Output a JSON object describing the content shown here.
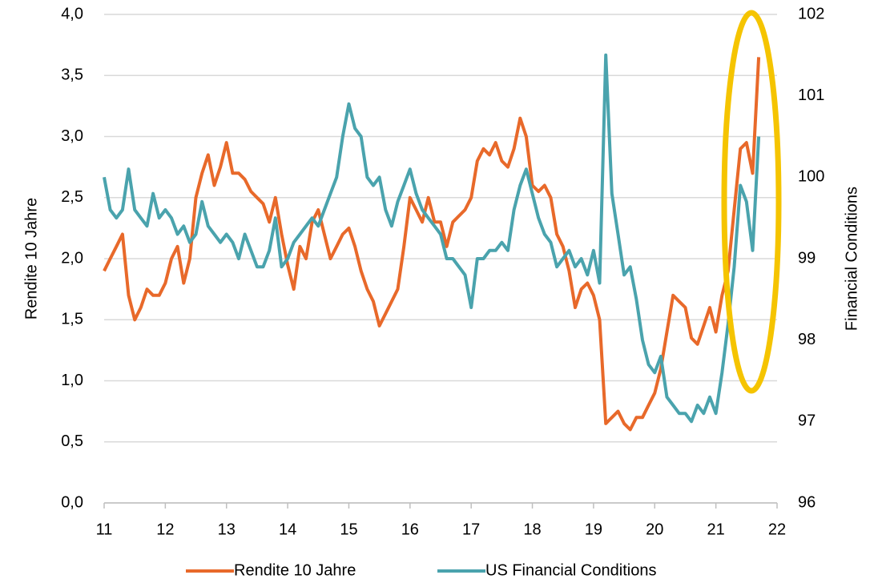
{
  "chart_data": {
    "type": "line",
    "y_label": "Rendite 10 Jahre",
    "y2_label": "Financial Conditions",
    "x": [
      11.0,
      11.1,
      11.2,
      11.3,
      11.4,
      11.5,
      11.6,
      11.7,
      11.8,
      11.9,
      12.0,
      12.1,
      12.2,
      12.3,
      12.4,
      12.5,
      12.6,
      12.7,
      12.8,
      12.9,
      13.0,
      13.1,
      13.2,
      13.3,
      13.4,
      13.5,
      13.6,
      13.7,
      13.8,
      13.9,
      14.0,
      14.1,
      14.2,
      14.3,
      14.4,
      14.5,
      14.6,
      14.7,
      14.8,
      14.9,
      15.0,
      15.1,
      15.2,
      15.3,
      15.4,
      15.5,
      15.6,
      15.7,
      15.8,
      15.9,
      16.0,
      16.1,
      16.2,
      16.3,
      16.4,
      16.5,
      16.6,
      16.7,
      16.8,
      16.9,
      17.0,
      17.1,
      17.2,
      17.3,
      17.4,
      17.5,
      17.6,
      17.7,
      17.8,
      17.9,
      18.0,
      18.1,
      18.2,
      18.3,
      18.4,
      18.5,
      18.6,
      18.7,
      18.8,
      18.9,
      19.0,
      19.1,
      19.2,
      19.3,
      19.4,
      19.5,
      19.6,
      19.7,
      19.8,
      19.9,
      20.0,
      20.1,
      20.2,
      20.3,
      20.4,
      20.5,
      20.6,
      20.7,
      20.8,
      20.9,
      21.0,
      21.1,
      21.2,
      21.3,
      21.4,
      21.5,
      21.6,
      21.7
    ],
    "xlim": [
      11,
      22
    ],
    "xticks": [
      11,
      12,
      13,
      14,
      15,
      16,
      17,
      18,
      19,
      20,
      21,
      22
    ],
    "ylim": [
      0,
      4
    ],
    "yticks": [
      {
        "value": 0,
        "label": "0,0"
      },
      {
        "value": 0.5,
        "label": "0,5"
      },
      {
        "value": 1,
        "label": "1,0"
      },
      {
        "value": 1.5,
        "label": "1,5"
      },
      {
        "value": 2,
        "label": "2,0"
      },
      {
        "value": 2.5,
        "label": "2,5"
      },
      {
        "value": 3,
        "label": "3,0"
      },
      {
        "value": 3.5,
        "label": "3,5"
      },
      {
        "value": 4,
        "label": "4,0"
      }
    ],
    "y2lim": [
      96,
      102
    ],
    "y2ticks": [
      96,
      97,
      98,
      99,
      100,
      101,
      102
    ],
    "grid": true,
    "legend": "bottom",
    "series": [
      {
        "name": "Rendite 10 Jahre",
        "color": "#e8692a",
        "axis": "y",
        "values": [
          1.9,
          2.0,
          2.1,
          2.2,
          1.7,
          1.5,
          1.6,
          1.75,
          1.7,
          1.7,
          1.8,
          2.0,
          2.1,
          1.8,
          2.0,
          2.5,
          2.7,
          2.85,
          2.6,
          2.75,
          2.95,
          2.7,
          2.7,
          2.65,
          2.55,
          2.5,
          2.45,
          2.3,
          2.5,
          2.2,
          1.95,
          1.75,
          2.1,
          2.0,
          2.3,
          2.4,
          2.2,
          2.0,
          2.1,
          2.2,
          2.25,
          2.1,
          1.9,
          1.75,
          1.65,
          1.45,
          1.55,
          1.65,
          1.75,
          2.1,
          2.5,
          2.4,
          2.3,
          2.5,
          2.3,
          2.3,
          2.1,
          2.3,
          2.35,
          2.4,
          2.5,
          2.8,
          2.9,
          2.85,
          2.95,
          2.8,
          2.75,
          2.9,
          3.15,
          3.0,
          2.6,
          2.55,
          2.6,
          2.5,
          2.2,
          2.1,
          1.9,
          1.6,
          1.75,
          1.8,
          1.7,
          1.5,
          0.65,
          0.7,
          0.75,
          0.65,
          0.6,
          0.7,
          0.7,
          0.8,
          0.9,
          1.1,
          1.4,
          1.7,
          1.65,
          1.6,
          1.35,
          1.3,
          1.45,
          1.6,
          1.4,
          1.7,
          1.9,
          2.4,
          2.9,
          2.95,
          2.7,
          3.65
        ]
      },
      {
        "name": "US Financial Conditions",
        "color": "#4aa3ad",
        "axis": "y2",
        "values": [
          100.0,
          99.6,
          99.5,
          99.6,
          100.1,
          99.6,
          99.5,
          99.4,
          99.8,
          99.5,
          99.6,
          99.5,
          99.3,
          99.4,
          99.2,
          99.3,
          99.7,
          99.4,
          99.3,
          99.2,
          99.3,
          99.2,
          99.0,
          99.3,
          99.1,
          98.9,
          98.9,
          99.1,
          99.5,
          98.9,
          99.0,
          99.2,
          99.3,
          99.4,
          99.5,
          99.4,
          99.6,
          99.8,
          100.0,
          100.5,
          100.9,
          100.6,
          100.5,
          100.0,
          99.9,
          100.0,
          99.6,
          99.4,
          99.7,
          99.9,
          100.1,
          99.8,
          99.6,
          99.5,
          99.4,
          99.3,
          99.0,
          99.0,
          98.9,
          98.8,
          98.4,
          99.0,
          99.0,
          99.1,
          99.1,
          99.2,
          99.1,
          99.6,
          99.9,
          100.1,
          99.8,
          99.5,
          99.3,
          99.2,
          98.9,
          99.0,
          99.1,
          98.9,
          99.0,
          98.8,
          99.1,
          98.7,
          101.5,
          99.8,
          99.3,
          98.8,
          98.9,
          98.5,
          98.0,
          97.7,
          97.6,
          97.8,
          97.3,
          97.2,
          97.1,
          97.1,
          97.0,
          97.2,
          97.1,
          97.3,
          97.1,
          97.6,
          98.2,
          98.9,
          99.9,
          99.7,
          99.1,
          100.5
        ]
      }
    ]
  }
}
